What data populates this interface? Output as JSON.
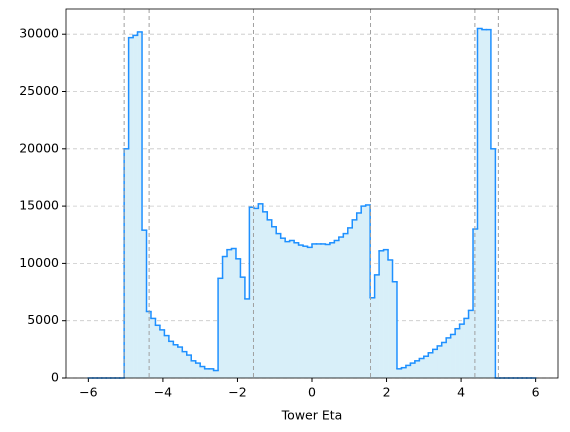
{
  "chart_data": {
    "type": "histogram",
    "xlabel": "Tower Eta",
    "bins": [
      -6,
      -5.88,
      -5.76,
      -5.64,
      -5.52,
      -5.4,
      -5.28,
      -5.16,
      -5.04,
      -4.92,
      -4.8,
      -4.68,
      -4.56,
      -4.44,
      -4.32,
      -4.2,
      -4.08,
      -3.96,
      -3.84,
      -3.72,
      -3.6,
      -3.48,
      -3.36,
      -3.24,
      -3.12,
      -3,
      -2.88,
      -2.76,
      -2.64,
      -2.52,
      -2.4,
      -2.28,
      -2.16,
      -2.04,
      -1.92,
      -1.8,
      -1.68,
      -1.56,
      -1.44,
      -1.32,
      -1.2,
      -1.08,
      -0.96,
      -0.84,
      -0.72,
      -0.6,
      -0.48,
      -0.36,
      -0.24,
      -0.12,
      0,
      0.12,
      0.24,
      0.36,
      0.48,
      0.6,
      0.72,
      0.84,
      0.96,
      1.08,
      1.2,
      1.32,
      1.44,
      1.56,
      1.68,
      1.8,
      1.92,
      2.04,
      2.16,
      2.28,
      2.4,
      2.52,
      2.64,
      2.76,
      2.88,
      3,
      3.12,
      3.24,
      3.36,
      3.48,
      3.6,
      3.72,
      3.84,
      3.96,
      4.08,
      4.2,
      4.32,
      4.44,
      4.56,
      4.68,
      4.8,
      4.92,
      5.04,
      5.16,
      5.28,
      5.4,
      5.52,
      5.64,
      5.76,
      5.88,
      6
    ],
    "values": [
      0,
      0,
      0,
      0,
      0,
      0,
      0,
      0,
      20000,
      29700,
      29900,
      30200,
      12900,
      5800,
      5200,
      4600,
      4200,
      3700,
      3200,
      2900,
      2700,
      2300,
      2000,
      1500,
      1300,
      1000,
      800,
      800,
      650,
      8700,
      10600,
      11200,
      11300,
      10400,
      8800,
      6900,
      14900,
      14800,
      15200,
      14500,
      13800,
      13200,
      12600,
      12200,
      11900,
      12000,
      11800,
      11600,
      11500,
      11400,
      11700,
      11700,
      11700,
      11650,
      11800,
      12000,
      12300,
      12600,
      13100,
      13800,
      14400,
      15000,
      15100,
      7000,
      9000,
      11100,
      11200,
      10300,
      8400,
      800,
      900,
      1100,
      1300,
      1500,
      1700,
      1900,
      2200,
      2500,
      2800,
      3100,
      3500,
      3800,
      4300,
      4700,
      5200,
      5900,
      13000,
      30500,
      30400,
      30400,
      20000,
      0,
      0,
      0,
      0,
      0,
      0,
      0,
      0,
      0
    ],
    "color": "#d8eff9",
    "edgecolor": "#1e90ff",
    "xlim": [
      -6.6,
      6.6
    ],
    "ylim": [
      0,
      32200
    ],
    "xticks": [
      {
        "value": -6,
        "label": "−6"
      },
      {
        "value": -4,
        "label": "−4"
      },
      {
        "value": -2,
        "label": "−2"
      },
      0,
      2,
      4,
      6
    ],
    "yticks": [
      0,
      5000,
      10000,
      15000,
      20000,
      25000,
      30000
    ],
    "grid": true,
    "vlines": [
      -5.04,
      -4.37,
      -1.57,
      1.57,
      4.37,
      5.0
    ],
    "vline_color": "#a0a0a0"
  }
}
